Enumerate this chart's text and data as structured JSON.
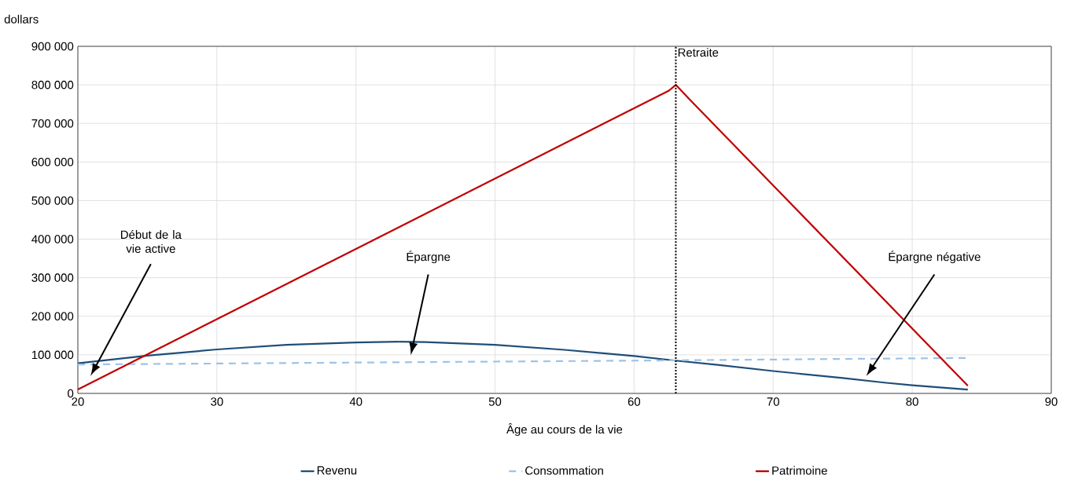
{
  "chart_data": {
    "type": "line",
    "xlabel": "Âge au cours de la vie",
    "ylabel": "dollars",
    "xlim": [
      20,
      90
    ],
    "xticks": [
      20,
      30,
      40,
      50,
      60,
      70,
      80,
      90
    ],
    "ylim": [
      0,
      900000
    ],
    "yticks": [
      0,
      {
        "value": 100000,
        "label": "100 000"
      },
      {
        "value": 200000,
        "label": "200 000"
      },
      {
        "value": 300000,
        "label": "300 000"
      },
      {
        "value": 400000,
        "label": "400 000"
      },
      {
        "value": 500000,
        "label": "500 000"
      },
      {
        "value": 600000,
        "label": "600 000"
      },
      {
        "value": 700000,
        "label": "700 000"
      },
      {
        "value": 800000,
        "label": "800 000"
      },
      {
        "value": 900000,
        "label": "900 000"
      }
    ],
    "grid": true,
    "legend": "bottom",
    "series": [
      {
        "name": "Revenu",
        "color": "#1f4e79",
        "x": [
          20,
          25,
          30,
          35,
          40,
          43,
          45,
          50,
          55,
          60,
          63,
          66,
          70,
          75,
          78,
          80,
          84
        ],
        "values": [
          78000,
          98000,
          114000,
          126000,
          132000,
          134000,
          133000,
          126000,
          113000,
          97000,
          85000,
          74000,
          58000,
          40000,
          28000,
          21000,
          10000
        ]
      },
      {
        "name": "Consommation",
        "color": "#9dc3e6",
        "line_style": "dashed",
        "x": [
          20,
          40,
          60,
          84
        ],
        "values": [
          75000,
          80000,
          85000,
          92000
        ]
      },
      {
        "name": "Patrimoine",
        "color": "#c00000",
        "x": [
          20,
          62.5,
          63,
          64,
          84
        ],
        "values": [
          10000,
          785000,
          800000,
          762000,
          20000
        ]
      }
    ],
    "ref_lines": [
      {
        "axis": "x",
        "value": 63,
        "label": "Retraite",
        "color": "#000000",
        "line_style": "dotted"
      }
    ],
    "annotations": [
      "Début de la vie active",
      "Épargne",
      "Épargne négative"
    ]
  }
}
